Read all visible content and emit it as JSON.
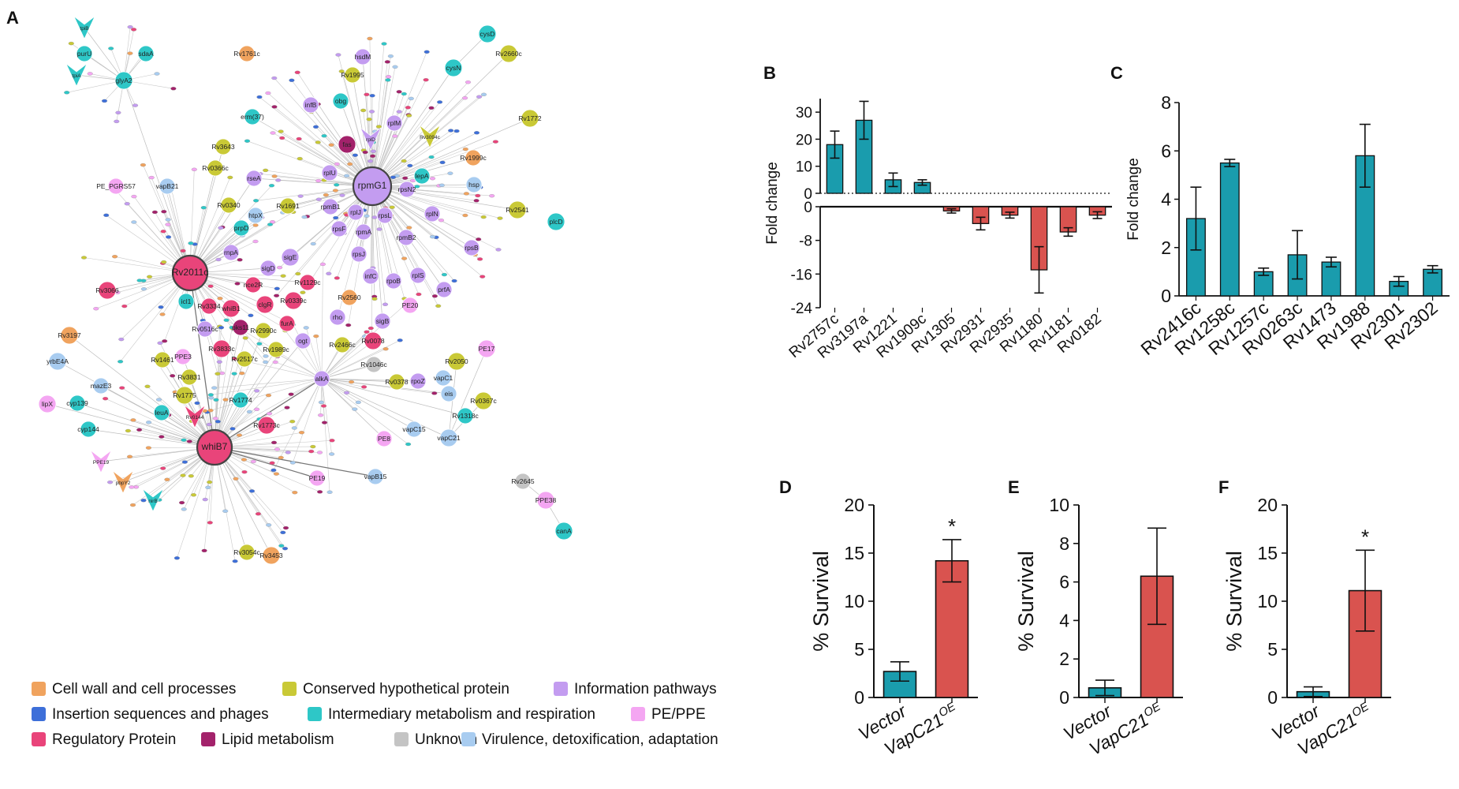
{
  "panel_letters": {
    "a": "A",
    "b": "B",
    "c": "C",
    "d": "D",
    "e": "E",
    "f": "F"
  },
  "colors": {
    "cell_wall": "#f0a35e",
    "insertion": "#3d6fd9",
    "regulatory": "#e9447a",
    "conserved": "#c9c936",
    "intermediary": "#2ec7c7",
    "lipid": "#a3226b",
    "info": "#c39cf0",
    "pe_ppe": "#f4a6f2",
    "unknown": "#c4c4c4",
    "virulence": "#a8ccf0",
    "teal_bar": "#1a9cad",
    "red_bar": "#d9534f"
  },
  "network": {
    "nodes": [
      {
        "label": "rpmG1",
        "cat": "info"
      },
      {
        "label": "Rv2011c",
        "cat": "regulatory"
      },
      {
        "label": "whiB7",
        "cat": "regulatory"
      },
      {
        "label": "purU",
        "cat": "intermediary"
      },
      {
        "label": "sdaA",
        "cat": "intermediary"
      },
      {
        "label": "glyA2",
        "cat": "intermediary"
      },
      {
        "label": "Rv1761c",
        "cat": "cell_wall"
      },
      {
        "label": "cysD",
        "cat": "intermediary"
      },
      {
        "label": "Rv2660c",
        "cat": "conserved"
      },
      {
        "label": "hsdM",
        "cat": "info"
      },
      {
        "label": "cysN",
        "cat": "intermediary"
      },
      {
        "label": "Rv1995",
        "cat": "conserved"
      },
      {
        "label": "infB",
        "cat": "info"
      },
      {
        "label": "obg",
        "cat": "intermediary"
      },
      {
        "label": "rplM",
        "cat": "info"
      },
      {
        "label": "Rv1772",
        "cat": "conserved"
      },
      {
        "label": "erm(37)",
        "cat": "intermediary"
      },
      {
        "label": "fas",
        "cat": "lipid"
      },
      {
        "label": "Rv3643",
        "cat": "conserved"
      },
      {
        "label": "Rv1999c",
        "cat": "cell_wall"
      },
      {
        "label": "lepA",
        "cat": "intermediary"
      },
      {
        "label": "Rv0366c",
        "cat": "conserved"
      },
      {
        "label": "rseA",
        "cat": "info"
      },
      {
        "label": "vapB21",
        "cat": "virulence"
      },
      {
        "label": "PE_PGRS57",
        "cat": "pe_ppe"
      },
      {
        "label": "rplU",
        "cat": "info"
      },
      {
        "label": "hsp",
        "cat": "virulence"
      },
      {
        "label": "rpsN2",
        "cat": "info"
      },
      {
        "label": "Rv0340",
        "cat": "conserved"
      },
      {
        "label": "Rv1691",
        "cat": "conserved"
      },
      {
        "label": "htpX",
        "cat": "virulence"
      },
      {
        "label": "rpmB1",
        "cat": "info"
      },
      {
        "label": "rplJ",
        "cat": "info"
      },
      {
        "label": "rpsL",
        "cat": "info"
      },
      {
        "label": "rplN",
        "cat": "info"
      },
      {
        "label": "Rv2541",
        "cat": "conserved"
      },
      {
        "label": "plcD",
        "cat": "intermediary"
      },
      {
        "label": "prpD",
        "cat": "intermediary"
      },
      {
        "label": "rpsF",
        "cat": "info"
      },
      {
        "label": "rpmA",
        "cat": "info"
      },
      {
        "label": "rpmB2",
        "cat": "info"
      },
      {
        "label": "rnpA",
        "cat": "info"
      },
      {
        "label": "sigE",
        "cat": "info"
      },
      {
        "label": "sigD",
        "cat": "info"
      },
      {
        "label": "rpsJ",
        "cat": "info"
      },
      {
        "label": "rpsB",
        "cat": "info"
      },
      {
        "label": "nce2R",
        "cat": "regulatory"
      },
      {
        "label": "Rv1129c",
        "cat": "regulatory"
      },
      {
        "label": "infC",
        "cat": "info"
      },
      {
        "label": "rpoB",
        "cat": "info"
      },
      {
        "label": "rplS",
        "cat": "info"
      },
      {
        "label": "prfA",
        "cat": "info"
      },
      {
        "label": "Rv3066",
        "cat": "regulatory"
      },
      {
        "label": "icl1",
        "cat": "intermediary"
      },
      {
        "label": "Rv3334",
        "cat": "regulatory"
      },
      {
        "label": "whiB1",
        "cat": "regulatory"
      },
      {
        "label": "clgR",
        "cat": "regulatory"
      },
      {
        "label": "Rv0339c",
        "cat": "regulatory"
      },
      {
        "label": "Rv2560",
        "cat": "cell_wall"
      },
      {
        "label": "PE20",
        "cat": "pe_ppe"
      },
      {
        "label": "furA",
        "cat": "regulatory"
      },
      {
        "label": "rho",
        "cat": "info"
      },
      {
        "label": "sigB",
        "cat": "info"
      },
      {
        "label": "Rv0516c",
        "cat": "info"
      },
      {
        "label": "pks11",
        "cat": "lipid"
      },
      {
        "label": "Rv2990c",
        "cat": "conserved"
      },
      {
        "label": "Rv3197",
        "cat": "cell_wall"
      },
      {
        "label": "ogt",
        "cat": "info"
      },
      {
        "label": "Rv2466c",
        "cat": "conserved"
      },
      {
        "label": "Rv0078",
        "cat": "regulatory"
      },
      {
        "label": "PE17",
        "cat": "pe_ppe"
      },
      {
        "label": "Rv3833c",
        "cat": "regulatory"
      },
      {
        "label": "Rv1989c",
        "cat": "conserved"
      },
      {
        "label": "yrbE4A",
        "cat": "virulence"
      },
      {
        "label": "Rv1461",
        "cat": "conserved"
      },
      {
        "label": "PPE3",
        "cat": "pe_ppe"
      },
      {
        "label": "Rv2517c",
        "cat": "conserved"
      },
      {
        "label": "Rv1046c",
        "cat": "unknown"
      },
      {
        "label": "Rv2050",
        "cat": "conserved"
      },
      {
        "label": "vapC1",
        "cat": "virulence"
      },
      {
        "label": "Rv3831",
        "cat": "conserved"
      },
      {
        "label": "mazE3",
        "cat": "virulence"
      },
      {
        "label": "alkA",
        "cat": "info"
      },
      {
        "label": "rpoZ",
        "cat": "info"
      },
      {
        "label": "Rv0378",
        "cat": "conserved"
      },
      {
        "label": "eis",
        "cat": "virulence"
      },
      {
        "label": "Rv1775",
        "cat": "conserved"
      },
      {
        "label": "lipX",
        "cat": "pe_ppe"
      },
      {
        "label": "cyp139",
        "cat": "intermediary"
      },
      {
        "label": "leuA",
        "cat": "intermediary"
      },
      {
        "label": "Rv1774",
        "cat": "intermediary"
      },
      {
        "label": "Rv0367c",
        "cat": "conserved"
      },
      {
        "label": "Rv1318c",
        "cat": "intermediary"
      },
      {
        "label": "cyp144",
        "cat": "intermediary"
      },
      {
        "label": "Rv1773c",
        "cat": "regulatory"
      },
      {
        "label": "vapC15",
        "cat": "virulence"
      },
      {
        "label": "PE8",
        "cat": "pe_ppe"
      },
      {
        "label": "vapC21",
        "cat": "virulence"
      },
      {
        "label": "PE19",
        "cat": "pe_ppe"
      },
      {
        "label": "vapB15",
        "cat": "virulence"
      },
      {
        "label": "Rv2645",
        "cat": "unknown"
      },
      {
        "label": "PPE38",
        "cat": "pe_ppe"
      },
      {
        "label": "canA",
        "cat": "intermediary"
      },
      {
        "label": "Rv3054c",
        "cat": "conserved"
      },
      {
        "label": "Rv3453",
        "cat": "cell_wall"
      }
    ],
    "arrow_nodes": [
      {
        "label": "tpiB",
        "cat": "intermediary"
      },
      {
        "label": "tpiA",
        "cat": "intermediary"
      },
      {
        "label": "rplD",
        "cat": "info"
      },
      {
        "label": "Rv3094c",
        "cat": "conserved"
      },
      {
        "label": "Rv0144",
        "cat": "regulatory"
      },
      {
        "label": "PPE19",
        "cat": "pe_ppe"
      },
      {
        "label": "pbpY2",
        "cat": "cell_wall"
      },
      {
        "label": "nirB",
        "cat": "intermediary"
      }
    ]
  },
  "legend": [
    {
      "label": "Cell wall and cell processes",
      "cat": "cell_wall"
    },
    {
      "label": "Conserved hypothetical protein",
      "cat": "conserved"
    },
    {
      "label": "Information pathways",
      "cat": "info"
    },
    {
      "label": "Insertion sequences and phages",
      "cat": "insertion"
    },
    {
      "label": "Intermediary metabolism and respiration",
      "cat": "intermediary"
    },
    {
      "label": "PE/PPE",
      "cat": "pe_ppe"
    },
    {
      "label": "Regulatory Protein",
      "cat": "regulatory"
    },
    {
      "label": "Lipid metabolism",
      "cat": "lipid"
    },
    {
      "label": "Unknown",
      "cat": "unknown"
    },
    {
      "label": "Virulence, detoxification, adaptation",
      "cat": "virulence"
    }
  ],
  "chart_data": [
    {
      "panel": "B",
      "type": "bar",
      "title": "",
      "ylabel": "Fold change",
      "xlabel": "",
      "categories": [
        "Rv2757c",
        "Rv3197a",
        "Rv1221",
        "Rv1909c",
        "Rv1305",
        "Rv2931",
        "Rv2935",
        "Rv1180",
        "Rv1181",
        "Rv0182"
      ],
      "values": [
        18,
        27,
        5,
        4,
        -1,
        -4,
        -2,
        -15,
        -6,
        -2
      ],
      "errors": [
        5,
        7,
        2.5,
        1,
        0.5,
        1.5,
        0.7,
        5.5,
        1,
        0.8
      ],
      "upper_axis": {
        "ylim": [
          0,
          35
        ],
        "ticks": [
          0,
          10,
          20,
          30
        ]
      },
      "lower_axis": {
        "ylim": [
          -24,
          0
        ],
        "ticks": [
          0,
          -8,
          -16,
          -24
        ]
      }
    },
    {
      "panel": "C",
      "type": "bar",
      "title": "",
      "ylabel": "Fold change",
      "xlabel": "",
      "categories": [
        "Rv2416c",
        "Rv1258c",
        "Rv1257c",
        "Rv0263c",
        "Rv1473",
        "Rv1988",
        "Rv2301",
        "Rv2302"
      ],
      "values": [
        3.2,
        5.5,
        1.0,
        1.7,
        1.4,
        5.8,
        0.6,
        1.1
      ],
      "errors": [
        1.3,
        0.15,
        0.15,
        1.0,
        0.2,
        1.3,
        0.2,
        0.15
      ],
      "ylim": [
        0,
        8
      ],
      "ticks": [
        0,
        2,
        4,
        6,
        8
      ]
    },
    {
      "panel": "D",
      "type": "bar",
      "title": "",
      "ylabel": "% Survival",
      "xlabel": "",
      "categories": [
        "Vector",
        "VapC21"
      ],
      "superscripts": [
        "",
        "OE"
      ],
      "values": [
        2.7,
        14.2
      ],
      "errors": [
        1.0,
        2.2
      ],
      "significance": [
        "",
        "*"
      ],
      "ylim": [
        0,
        20
      ],
      "ticks": [
        0,
        5,
        10,
        15,
        20
      ]
    },
    {
      "panel": "E",
      "type": "bar",
      "title": "",
      "ylabel": "% Survival",
      "xlabel": "",
      "categories": [
        "Vector",
        "VapC21"
      ],
      "superscripts": [
        "",
        "OE"
      ],
      "values": [
        0.5,
        6.3
      ],
      "errors": [
        0.4,
        2.5
      ],
      "significance": [
        "",
        ""
      ],
      "ylim": [
        0,
        10
      ],
      "ticks": [
        0,
        2,
        4,
        6,
        8,
        10
      ]
    },
    {
      "panel": "F",
      "type": "bar",
      "title": "",
      "ylabel": "% Survival",
      "xlabel": "",
      "categories": [
        "Vector",
        "VapC21"
      ],
      "superscripts": [
        "",
        "OE"
      ],
      "values": [
        0.6,
        11.1
      ],
      "errors": [
        0.5,
        4.2
      ],
      "significance": [
        "",
        "*"
      ],
      "ylim": [
        0,
        20
      ],
      "ticks": [
        0,
        5,
        10,
        15,
        20
      ]
    }
  ]
}
